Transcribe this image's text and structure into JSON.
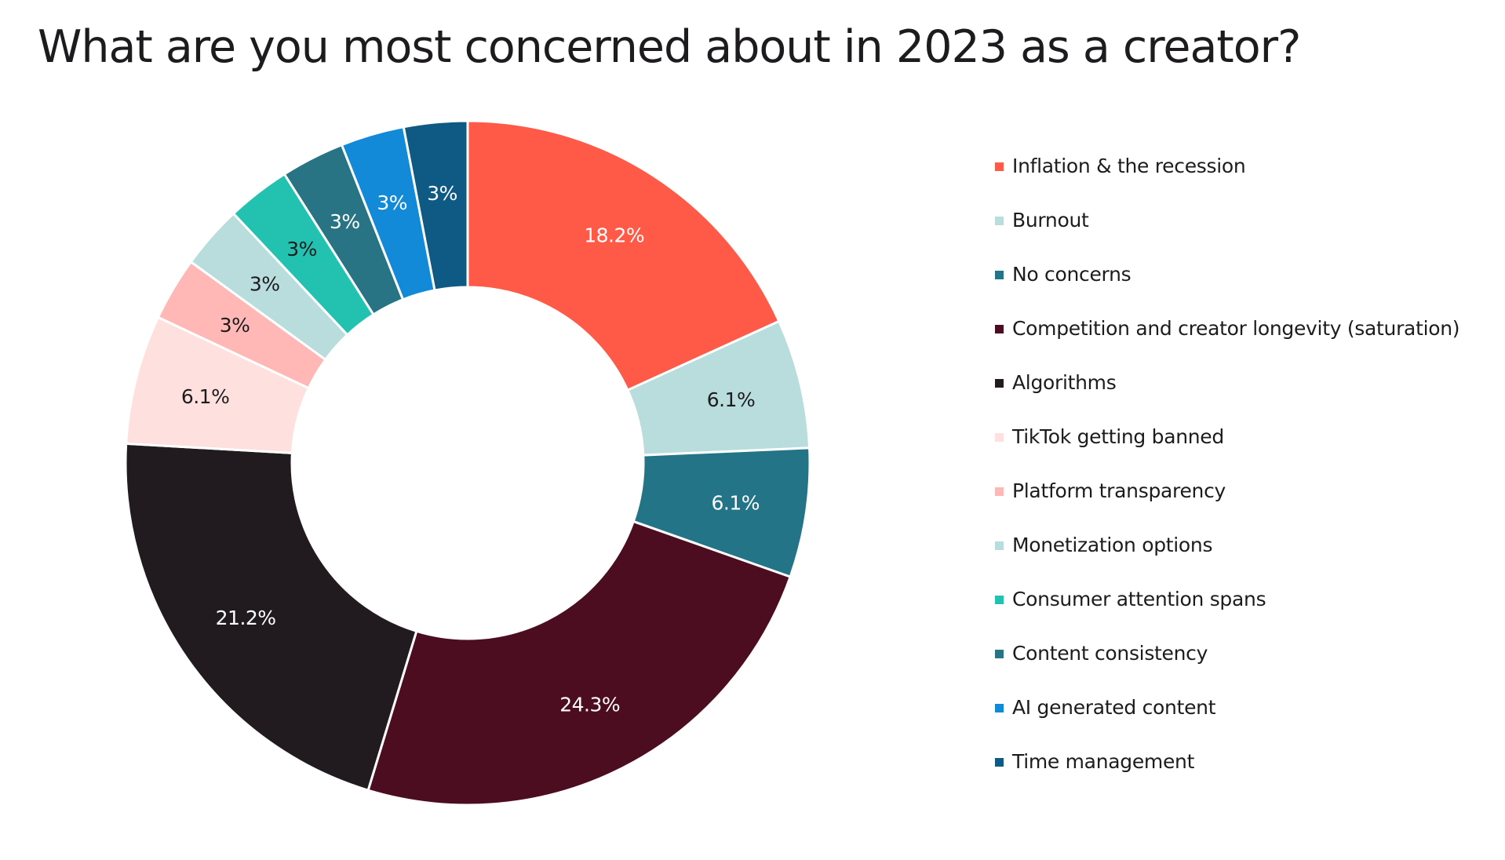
{
  "title": "What are you most concerned about in 2023 as a creator?",
  "chart_data": {
    "type": "pie",
    "donut": true,
    "title": "What are you most concerned about in 2023 as a creator?",
    "legend_position": "right",
    "slices": [
      {
        "label": "Inflation & the recession",
        "value": 18.2,
        "display": "18.2%",
        "color": "#fe5a47",
        "text_color": "#ffffff"
      },
      {
        "label": "Burnout",
        "value": 6.1,
        "display": "6.1%",
        "color": "#b9dcdc",
        "text_color": "#1d1b1e"
      },
      {
        "label": "No concerns",
        "value": 6.1,
        "display": "6.1%",
        "color": "#247488",
        "text_color": "#ffffff"
      },
      {
        "label": "Competition and creator longevity (saturation)",
        "value": 24.3,
        "display": "24.3%",
        "color": "#4c0d21",
        "text_color": "#ffffff"
      },
      {
        "label": "Algorithms",
        "value": 21.2,
        "display": "21.2%",
        "color": "#211b1f",
        "text_color": "#ffffff"
      },
      {
        "label": "TikTok getting banned",
        "value": 6.1,
        "display": "6.1%",
        "color": "#fee0de",
        "text_color": "#1d1b1e"
      },
      {
        "label": "Platform transparency",
        "value": 3,
        "display": "3%",
        "color": "#ffb8b5",
        "text_color": "#1d1b1e"
      },
      {
        "label": "Monetization options",
        "value": 3,
        "display": "3%",
        "color": "#b9dcdc",
        "text_color": "#1d1b1e"
      },
      {
        "label": "Consumer attention spans",
        "value": 3,
        "display": "3%",
        "color": "#23c2b0",
        "text_color": "#1d1b1e"
      },
      {
        "label": "Content consistency",
        "value": 3,
        "display": "3%",
        "color": "#287485",
        "text_color": "#ffffff"
      },
      {
        "label": "AI generated content",
        "value": 3,
        "display": "3%",
        "color": "#128ad8",
        "text_color": "#ffffff"
      },
      {
        "label": "Time management",
        "value": 3,
        "display": "3%",
        "color": "#0f5a85",
        "text_color": "#ffffff"
      }
    ]
  }
}
